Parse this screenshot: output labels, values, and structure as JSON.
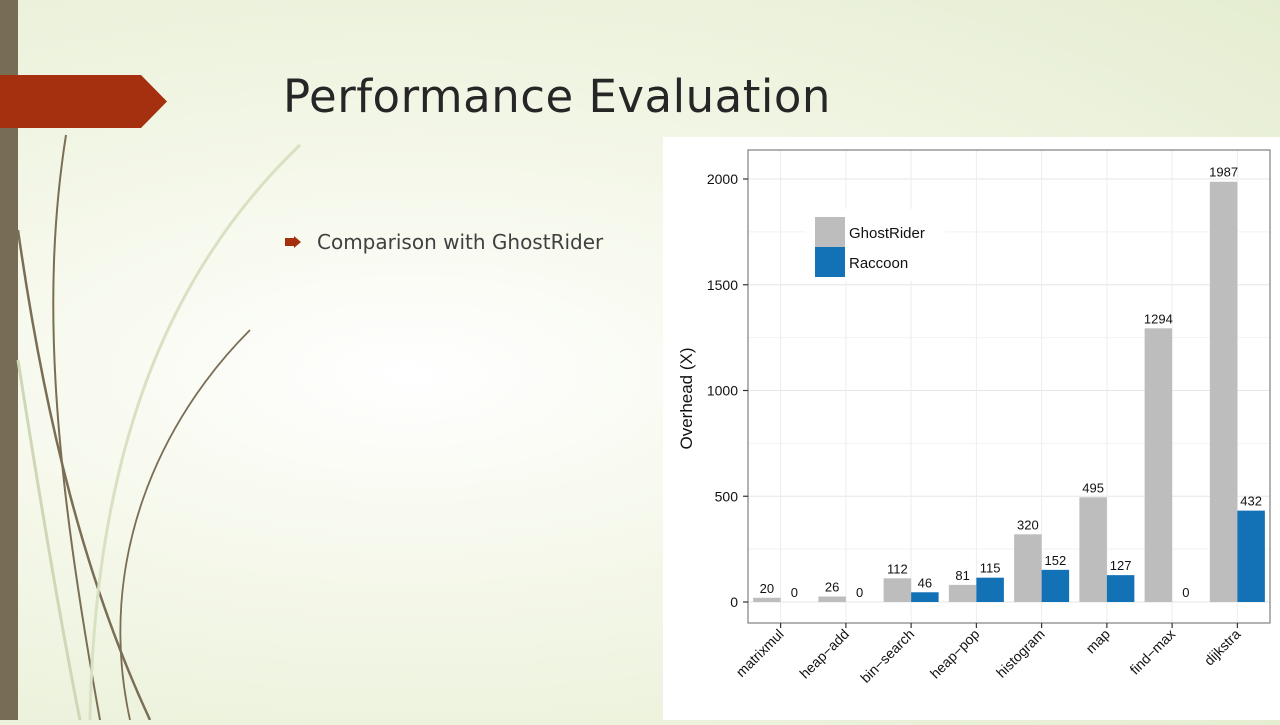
{
  "slide": {
    "title": "Performance Evaluation",
    "bullets": [
      "Comparison with GhostRider"
    ]
  },
  "colors": {
    "accent_tab": "#a5300f",
    "left_bar": "#776c54",
    "ghostrider": "#bdbdbd",
    "raccoon": "#1372b6"
  },
  "icons": {
    "bullet": "arrow-bullet-icon"
  },
  "chart_data": {
    "type": "bar",
    "title": "",
    "xlabel": "",
    "ylabel": "Overhead (X)",
    "ylim": [
      0,
      2000
    ],
    "yticks": [
      0,
      500,
      1000,
      1500,
      2000
    ],
    "categories": [
      "matrixmul",
      "heap−add",
      "bin−search",
      "heap−pop",
      "histogram",
      "map",
      "find−max",
      "dijkstra"
    ],
    "series": [
      {
        "name": "GhostRider",
        "color": "#bdbdbd",
        "values": [
          20,
          26,
          112,
          81,
          320,
          495,
          1294,
          1987
        ]
      },
      {
        "name": "Raccoon",
        "color": "#1372b6",
        "values": [
          0,
          0,
          46,
          115,
          152,
          127,
          0,
          432
        ]
      }
    ],
    "data_labels": true,
    "grid": true,
    "legend": "top-left"
  }
}
